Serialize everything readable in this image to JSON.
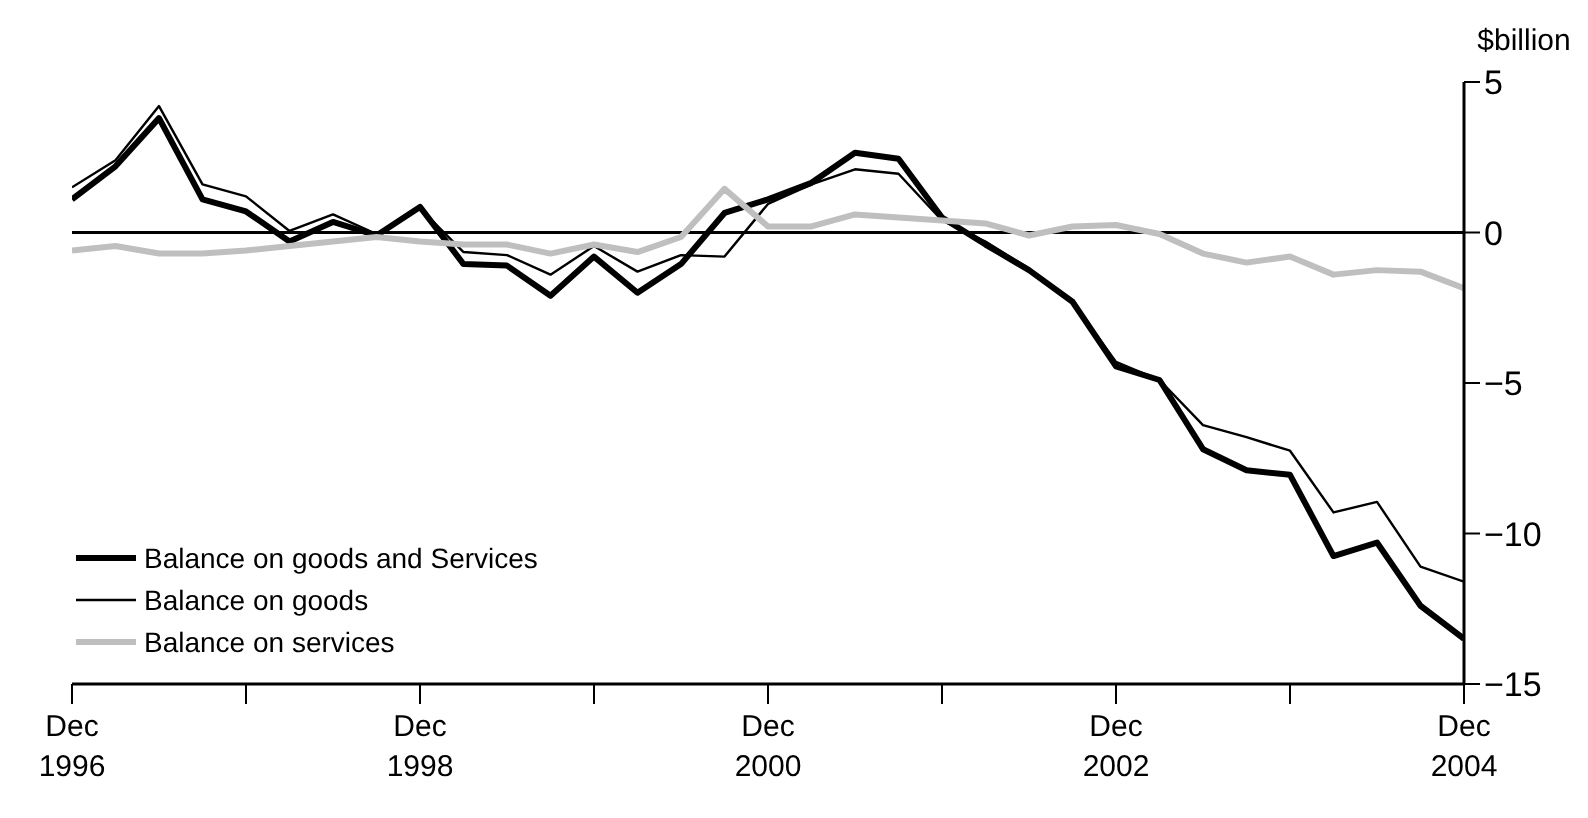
{
  "chart_data": {
    "type": "line",
    "ylabel": "$billion",
    "x": [
      "1996-12",
      "1997-03",
      "1997-06",
      "1997-09",
      "1997-12",
      "1998-03",
      "1998-06",
      "1998-09",
      "1998-12",
      "1999-03",
      "1999-06",
      "1999-09",
      "1999-12",
      "2000-03",
      "2000-06",
      "2000-09",
      "2000-12",
      "2001-03",
      "2001-06",
      "2001-09",
      "2001-12",
      "2002-03",
      "2002-06",
      "2002-09",
      "2002-12",
      "2003-03",
      "2003-06",
      "2003-09",
      "2003-12",
      "2004-03",
      "2004-06",
      "2004-09",
      "2004-12"
    ],
    "series": [
      {
        "name": "Balance on goods and Services",
        "color": "#000000",
        "values": [
          1.1,
          2.2,
          3.8,
          1.1,
          0.7,
          -0.3,
          0.35,
          -0.1,
          0.85,
          -1.05,
          -1.1,
          -2.1,
          -0.8,
          -2.0,
          -1.05,
          0.65,
          1.1,
          1.65,
          2.65,
          2.45,
          0.5,
          -0.4,
          -1.25,
          -2.3,
          -4.45,
          -4.9,
          -7.2,
          -7.9,
          -8.05,
          -10.75,
          -10.3,
          -12.4,
          -13.5
        ]
      },
      {
        "name": "Balance on goods",
        "color": "#000000",
        "values": [
          1.5,
          2.4,
          4.2,
          1.6,
          1.2,
          0.05,
          0.6,
          -0.05,
          0.8,
          -0.65,
          -0.75,
          -1.4,
          -0.45,
          -1.3,
          -0.75,
          -0.8,
          0.95,
          1.6,
          2.1,
          1.95,
          0.4,
          -0.3,
          -1.2,
          -2.3,
          -4.3,
          -4.9,
          -6.4,
          -6.8,
          -7.25,
          -9.3,
          -8.95,
          -11.1,
          -11.6
        ]
      },
      {
        "name": "Balance on services",
        "color": "#bfbfbf",
        "values": [
          -0.6,
          -0.45,
          -0.7,
          -0.7,
          -0.6,
          -0.45,
          -0.3,
          -0.15,
          -0.3,
          -0.4,
          -0.4,
          -0.7,
          -0.4,
          -0.65,
          -0.15,
          1.45,
          0.2,
          0.2,
          0.6,
          0.5,
          0.4,
          0.3,
          -0.1,
          0.2,
          0.25,
          -0.05,
          -0.7,
          -1.0,
          -0.8,
          -1.4,
          -1.25,
          -1.3,
          -1.85
        ]
      }
    ],
    "xlim": [
      "1996-12",
      "2004-12"
    ],
    "xticks": [
      {
        "value": "1996-12",
        "label": "Dec 1996"
      },
      {
        "value": "1997-12",
        "label": null
      },
      {
        "value": "1998-12",
        "label": "Dec 1998"
      },
      {
        "value": "1999-12",
        "label": null
      },
      {
        "value": "2000-12",
        "label": "Dec 2000"
      },
      {
        "value": "2001-12",
        "label": null
      },
      {
        "value": "2002-12",
        "label": "Dec 2002"
      },
      {
        "value": "2003-12",
        "label": null
      },
      {
        "value": "2004-12",
        "label": "Dec 2004"
      }
    ],
    "ylim": [
      -15,
      5
    ],
    "yticks": [
      5,
      0,
      {
        "value": -5,
        "label": "−5"
      },
      {
        "value": -10,
        "label": "−10"
      },
      {
        "value": -15,
        "label": "−15"
      }
    ],
    "ref_lines": [
      {
        "axis": "y",
        "value": 0,
        "color": "#000000"
      }
    ],
    "legend": "bottom left",
    "grid": false,
    "marker": "none",
    "line_style": "solid"
  }
}
